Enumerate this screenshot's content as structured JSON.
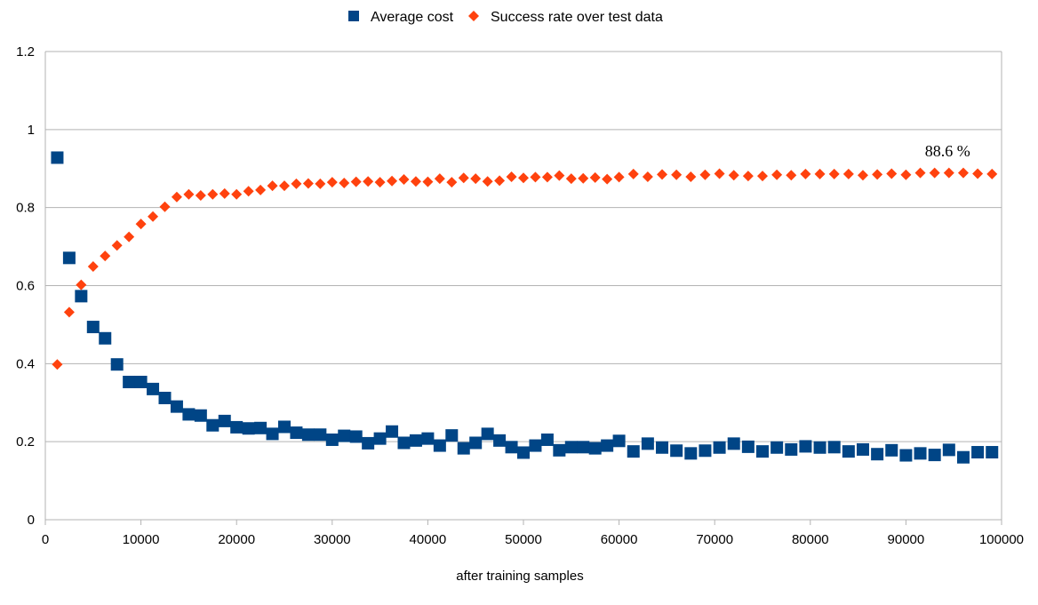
{
  "chart_data": {
    "type": "scatter",
    "xlabel": "after training samples",
    "ylabel": "",
    "xlim": [
      0,
      100000
    ],
    "ylim": [
      0,
      1.2
    ],
    "x_ticks": [
      "0",
      "10000",
      "20000",
      "30000",
      "40000",
      "50000",
      "60000",
      "70000",
      "80000",
      "90000",
      "100000"
    ],
    "y_ticks": [
      "0",
      "0.2",
      "0.4",
      "0.6",
      "0.8",
      "1",
      "1.2"
    ],
    "grid": "horizontal",
    "legend_position": "top-center",
    "annotation": {
      "text": "88.6 %",
      "x": 99000,
      "y": 0.886
    },
    "series": [
      {
        "name": "Average cost",
        "marker": "square",
        "color": "#004586",
        "x": [
          1250,
          2500,
          3750,
          5000,
          6250,
          7500,
          8750,
          10000,
          11250,
          12500,
          13750,
          15000,
          16250,
          17500,
          18750,
          20000,
          21250,
          22500,
          23750,
          25000,
          26250,
          27500,
          28750,
          30000,
          31250,
          32500,
          33750,
          35000,
          36250,
          37500,
          38750,
          40000,
          41250,
          42500,
          43750,
          45000,
          46250,
          47500,
          48750,
          50000,
          51250,
          52500,
          53750,
          55000,
          56250,
          57500,
          58750,
          60000,
          61500,
          63000,
          64500,
          66000,
          67500,
          69000,
          70500,
          72000,
          73500,
          75000,
          76500,
          78000,
          79500,
          81000,
          82500,
          84000,
          85500,
          87000,
          88500,
          90000,
          91500,
          93000,
          94500,
          96000,
          97500,
          99000
        ],
        "y": [
          0.928,
          0.671,
          0.573,
          0.494,
          0.465,
          0.398,
          0.353,
          0.353,
          0.335,
          0.312,
          0.29,
          0.27,
          0.267,
          0.242,
          0.253,
          0.237,
          0.234,
          0.235,
          0.22,
          0.238,
          0.223,
          0.218,
          0.218,
          0.205,
          0.215,
          0.213,
          0.196,
          0.208,
          0.226,
          0.197,
          0.203,
          0.208,
          0.19,
          0.216,
          0.183,
          0.197,
          0.22,
          0.203,
          0.186,
          0.172,
          0.19,
          0.205,
          0.178,
          0.186,
          0.186,
          0.183,
          0.19,
          0.202,
          0.175,
          0.195,
          0.185,
          0.177,
          0.17,
          0.177,
          0.185,
          0.195,
          0.187,
          0.175,
          0.185,
          0.18,
          0.188,
          0.185,
          0.186,
          0.175,
          0.18,
          0.168,
          0.178,
          0.165,
          0.17,
          0.166,
          0.179,
          0.16,
          0.173,
          0.173
        ]
      },
      {
        "name": "Success rate over test data",
        "marker": "diamond",
        "color": "#ff420e",
        "x": [
          1250,
          2500,
          3750,
          5000,
          6250,
          7500,
          8750,
          10000,
          11250,
          12500,
          13750,
          15000,
          16250,
          17500,
          18750,
          20000,
          21250,
          22500,
          23750,
          25000,
          26250,
          27500,
          28750,
          30000,
          31250,
          32500,
          33750,
          35000,
          36250,
          37500,
          38750,
          40000,
          41250,
          42500,
          43750,
          45000,
          46250,
          47500,
          48750,
          50000,
          51250,
          52500,
          53750,
          55000,
          56250,
          57500,
          58750,
          60000,
          61500,
          63000,
          64500,
          66000,
          67500,
          69000,
          70500,
          72000,
          73500,
          75000,
          76500,
          78000,
          79500,
          81000,
          82500,
          84000,
          85500,
          87000,
          88500,
          90000,
          91500,
          93000,
          94500,
          96000,
          97500,
          99000
        ],
        "y": [
          0.398,
          0.532,
          0.602,
          0.649,
          0.676,
          0.703,
          0.725,
          0.758,
          0.777,
          0.802,
          0.827,
          0.834,
          0.831,
          0.834,
          0.836,
          0.834,
          0.842,
          0.845,
          0.856,
          0.856,
          0.861,
          0.862,
          0.861,
          0.865,
          0.863,
          0.866,
          0.867,
          0.865,
          0.868,
          0.872,
          0.867,
          0.866,
          0.874,
          0.865,
          0.876,
          0.874,
          0.867,
          0.869,
          0.879,
          0.876,
          0.878,
          0.878,
          0.882,
          0.874,
          0.875,
          0.877,
          0.873,
          0.878,
          0.886,
          0.879,
          0.885,
          0.884,
          0.879,
          0.884,
          0.887,
          0.883,
          0.881,
          0.881,
          0.884,
          0.883,
          0.886,
          0.886,
          0.886,
          0.886,
          0.883,
          0.885,
          0.887,
          0.884,
          0.889,
          0.889,
          0.889,
          0.889,
          0.887,
          0.886
        ]
      }
    ]
  }
}
